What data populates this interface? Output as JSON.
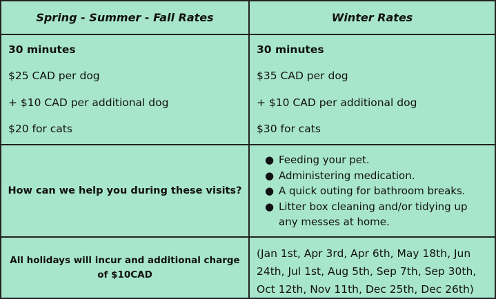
{
  "table": {
    "background_color": "#a8e6cc",
    "border_color": "#222222",
    "headers": {
      "left": "Spring - Summer - Fall Rates",
      "right": "Winter Rates"
    },
    "spring_summer_fall": {
      "duration": "30 minutes",
      "per_dog": "$25 CAD per dog",
      "additional_dog": "+ $10 CAD per additional dog",
      "cats": "$20 for cats"
    },
    "winter": {
      "duration": "30 minutes",
      "per_dog": "$35 CAD per dog",
      "additional_dog": "+ $10 CAD per additional dog",
      "cats": "$30 for cats"
    },
    "help_question": "How can we help you during these visits?",
    "help_items": [
      "Feeding your pet.",
      "Administering medication.",
      "A quick outing for bathroom breaks.",
      "Litter box cleaning and/or tidying up any messes at home."
    ],
    "bullet_glyph": "●",
    "holiday_note": "All holidays will incur and additional charge of $10CAD",
    "holiday_dates": "(Jan 1st, Apr 3rd, Apr 6th, May 18th, Jun 24th, Jul 1st, Aug 5th, Sep 7th, Sep 30th, Oct 12th, Nov 11th, Dec 25th, Dec 26th)"
  }
}
